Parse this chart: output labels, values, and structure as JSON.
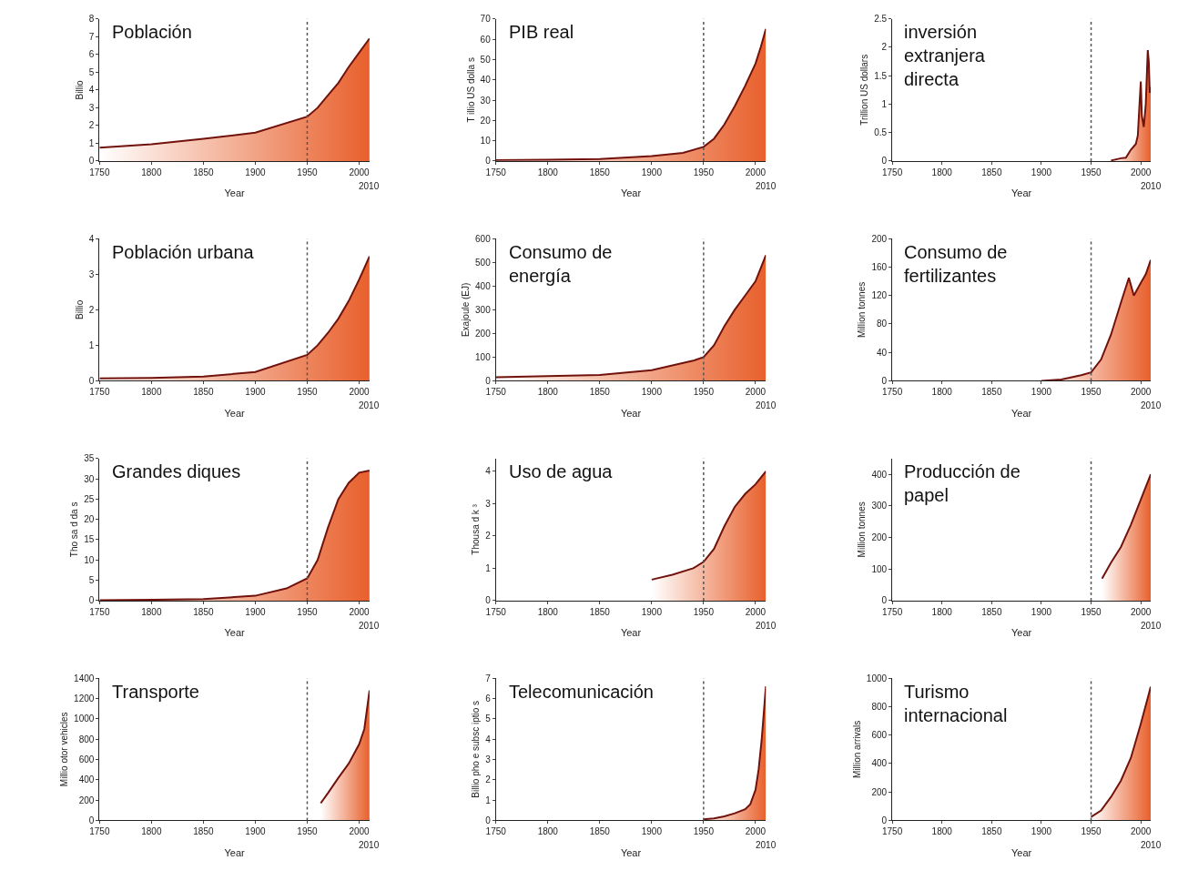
{
  "chart_data": [
    {
      "type": "area",
      "title": "Población",
      "xlabel": "Year",
      "ylabel": "Billio",
      "annotations": [
        "2010"
      ],
      "xlim": [
        1750,
        2010
      ],
      "xticks": [
        1750,
        1800,
        1850,
        1900,
        1950,
        2000
      ],
      "ylim": [
        0,
        8
      ],
      "yticks": [
        0,
        1,
        2,
        3,
        4,
        5,
        6,
        7,
        8
      ],
      "ref_lines": [
        {
          "axis": "x",
          "value": 1950,
          "color": "#555555",
          "line_style": "dotted"
        }
      ],
      "series": [
        {
          "color": "#e8602c",
          "x": [
            1750,
            1800,
            1850,
            1900,
            1950,
            1960,
            1970,
            1980,
            1990,
            2000,
            2010
          ],
          "values": [
            0.75,
            0.95,
            1.25,
            1.6,
            2.5,
            3.0,
            3.7,
            4.4,
            5.3,
            6.1,
            6.9
          ]
        }
      ]
    },
    {
      "type": "area",
      "title": "PIB real",
      "xlabel": "Year",
      "ylabel": "T illio US dolla s",
      "annotations": [
        "2010"
      ],
      "xlim": [
        1750,
        2010
      ],
      "xticks": [
        1750,
        1800,
        1850,
        1900,
        1950,
        2000
      ],
      "ylim": [
        0,
        70
      ],
      "yticks": [
        0,
        10,
        20,
        30,
        40,
        50,
        60,
        70
      ],
      "ref_lines": [
        {
          "axis": "x",
          "value": 1950,
          "color": "#555555",
          "line_style": "dotted"
        }
      ],
      "series": [
        {
          "color": "#e8602c",
          "x": [
            1750,
            1800,
            1850,
            1900,
            1930,
            1950,
            1960,
            1970,
            1980,
            1990,
            2000,
            2005,
            2010
          ],
          "values": [
            0.5,
            0.7,
            1,
            2.5,
            4,
            7,
            11,
            18,
            27,
            37,
            48,
            56,
            65
          ]
        }
      ]
    },
    {
      "type": "area",
      "title": "inversión extranjera directa",
      "xlabel": "Year",
      "ylabel": "Trillion US dollars",
      "annotations": [
        "2010"
      ],
      "xlim": [
        1750,
        2010
      ],
      "xticks": [
        1750,
        1800,
        1850,
        1900,
        1950,
        2000
      ],
      "ylim": [
        0,
        2.5
      ],
      "yticks": [
        0,
        0.5,
        1,
        1.5,
        2,
        2.5
      ],
      "ref_lines": [
        {
          "axis": "x",
          "value": 1950,
          "color": "#555555",
          "line_style": "dotted"
        }
      ],
      "series": [
        {
          "color": "#e8602c",
          "x": [
            1970,
            1980,
            1985,
            1990,
            1995,
            1997,
            1999,
            2000,
            2001,
            2003,
            2005,
            2007,
            2008,
            2009,
            2010
          ],
          "values": [
            0.01,
            0.05,
            0.06,
            0.2,
            0.3,
            0.45,
            1.1,
            1.4,
            0.8,
            0.6,
            1.0,
            1.95,
            1.75,
            1.2,
            1.3
          ]
        }
      ]
    },
    {
      "type": "area",
      "title": "Población urbana",
      "xlabel": "Year",
      "ylabel": "Billio",
      "annotations": [
        "2010"
      ],
      "xlim": [
        1750,
        2010
      ],
      "xticks": [
        1750,
        1800,
        1850,
        1900,
        1950,
        2000
      ],
      "ylim": [
        0,
        4
      ],
      "yticks": [
        0,
        1,
        2,
        3,
        4
      ],
      "ref_lines": [
        {
          "axis": "x",
          "value": 1950,
          "color": "#555555",
          "line_style": "dotted"
        }
      ],
      "series": [
        {
          "color": "#e8602c",
          "x": [
            1750,
            1800,
            1850,
            1900,
            1950,
            1960,
            1970,
            1980,
            1990,
            2000,
            2010
          ],
          "values": [
            0.07,
            0.08,
            0.12,
            0.25,
            0.73,
            1.0,
            1.35,
            1.75,
            2.25,
            2.85,
            3.5
          ]
        }
      ]
    },
    {
      "type": "area",
      "title": "Consumo de energía",
      "xlabel": "Year",
      "ylabel": "Exajoule (EJ)",
      "annotations": [
        "2010"
      ],
      "xlim": [
        1750,
        2010
      ],
      "xticks": [
        1750,
        1800,
        1850,
        1900,
        1950,
        2000
      ],
      "ylim": [
        0,
        600
      ],
      "yticks": [
        0,
        100,
        200,
        300,
        400,
        500,
        600
      ],
      "ref_lines": [
        {
          "axis": "x",
          "value": 1950,
          "color": "#555555",
          "line_style": "dotted"
        }
      ],
      "series": [
        {
          "color": "#e8602c",
          "x": [
            1750,
            1800,
            1850,
            1900,
            1920,
            1940,
            1950,
            1960,
            1970,
            1980,
            1990,
            2000,
            2010
          ],
          "values": [
            15,
            20,
            25,
            45,
            65,
            85,
            100,
            150,
            230,
            300,
            360,
            420,
            530
          ]
        }
      ]
    },
    {
      "type": "area",
      "title": "Consumo de fertilizantes",
      "xlabel": "Year",
      "ylabel": "Million tonnes",
      "annotations": [
        "2010"
      ],
      "xlim": [
        1750,
        2010
      ],
      "xticks": [
        1750,
        1800,
        1850,
        1900,
        1950,
        2000
      ],
      "ylim": [
        0,
        200
      ],
      "yticks": [
        0,
        40,
        80,
        120,
        160,
        200
      ],
      "ref_lines": [
        {
          "axis": "x",
          "value": 1950,
          "color": "#555555",
          "line_style": "dotted"
        }
      ],
      "series": [
        {
          "color": "#e8602c",
          "x": [
            1900,
            1920,
            1940,
            1950,
            1960,
            1970,
            1980,
            1988,
            1993,
            2000,
            2005,
            2010
          ],
          "values": [
            0,
            2,
            8,
            12,
            30,
            65,
            110,
            145,
            120,
            138,
            150,
            170
          ]
        }
      ]
    },
    {
      "type": "area",
      "title": "Grandes diques",
      "xlabel": "Year",
      "ylabel": "Tho sa d da s",
      "annotations": [
        "2010"
      ],
      "xlim": [
        1750,
        2010
      ],
      "xticks": [
        1750,
        1800,
        1850,
        1900,
        1950,
        2000
      ],
      "ylim": [
        0,
        35
      ],
      "yticks": [
        0,
        5,
        10,
        15,
        20,
        25,
        30,
        35
      ],
      "ref_lines": [
        {
          "axis": "x",
          "value": 1950,
          "color": "#555555",
          "line_style": "dotted"
        }
      ],
      "series": [
        {
          "color": "#e8602c",
          "x": [
            1750,
            1800,
            1850,
            1900,
            1930,
            1950,
            1960,
            1970,
            1980,
            1990,
            2000,
            2010
          ],
          "values": [
            0.1,
            0.2,
            0.4,
            1.2,
            3,
            5.5,
            10,
            18,
            25,
            29,
            31.5,
            32
          ]
        }
      ]
    },
    {
      "type": "area",
      "title": "Uso de agua",
      "xlabel": "Year",
      "ylabel": "Thousa d k ³",
      "annotations": [
        "2010"
      ],
      "xlim": [
        1750,
        2010
      ],
      "xticks": [
        1750,
        1800,
        1850,
        1900,
        1950,
        2000
      ],
      "ylim": [
        0,
        4.4
      ],
      "yticks": [
        0,
        1,
        2,
        3,
        4
      ],
      "ref_lines": [
        {
          "axis": "x",
          "value": 1950,
          "color": "#555555",
          "line_style": "dotted"
        }
      ],
      "series": [
        {
          "color": "#e8602c",
          "x": [
            1900,
            1920,
            1940,
            1950,
            1960,
            1970,
            1980,
            1990,
            2000,
            2010
          ],
          "values": [
            0.65,
            0.8,
            1.0,
            1.2,
            1.6,
            2.3,
            2.9,
            3.3,
            3.6,
            4.0
          ]
        }
      ]
    },
    {
      "type": "area",
      "title": "Producción de papel",
      "xlabel": "Year",
      "ylabel": "Million tonnes",
      "annotations": [
        "2010"
      ],
      "xlim": [
        1750,
        2010
      ],
      "xticks": [
        1750,
        1800,
        1850,
        1900,
        1950,
        2000
      ],
      "ylim": [
        0,
        450
      ],
      "yticks": [
        0,
        100,
        200,
        300,
        400
      ],
      "ref_lines": [
        {
          "axis": "x",
          "value": 1950,
          "color": "#555555",
          "line_style": "dotted"
        }
      ],
      "series": [
        {
          "color": "#e8602c",
          "x": [
            1961,
            1970,
            1980,
            1990,
            2000,
            2010
          ],
          "values": [
            70,
            120,
            170,
            240,
            320,
            400
          ]
        }
      ]
    },
    {
      "type": "area",
      "title": "Transporte",
      "xlabel": "Year",
      "ylabel": "Millio otor vehicles",
      "annotations": [
        "2010"
      ],
      "xlim": [
        1750,
        2010
      ],
      "xticks": [
        1750,
        1800,
        1850,
        1900,
        1950,
        2000
      ],
      "ylim": [
        0,
        1400
      ],
      "yticks": [
        0,
        200,
        400,
        600,
        800,
        1000,
        1200,
        1400
      ],
      "ref_lines": [
        {
          "axis": "x",
          "value": 1950,
          "color": "#555555",
          "line_style": "dotted"
        }
      ],
      "series": [
        {
          "color": "#e8602c",
          "x": [
            1963,
            1970,
            1980,
            1990,
            2000,
            2005,
            2010
          ],
          "values": [
            170,
            270,
            420,
            560,
            750,
            900,
            1280
          ]
        }
      ]
    },
    {
      "type": "area",
      "title": "Telecomunicación",
      "xlabel": "Year",
      "ylabel": "Billio pho e subsc iptio s",
      "annotations": [
        "2010"
      ],
      "xlim": [
        1750,
        2010
      ],
      "xticks": [
        1750,
        1800,
        1850,
        1900,
        1950,
        2000
      ],
      "ylim": [
        0,
        7
      ],
      "yticks": [
        0,
        1,
        2,
        3,
        4,
        5,
        6,
        7
      ],
      "ref_lines": [
        {
          "axis": "x",
          "value": 1950,
          "color": "#555555",
          "line_style": "dotted"
        }
      ],
      "series": [
        {
          "color": "#e8602c",
          "x": [
            1950,
            1960,
            1970,
            1980,
            1990,
            1995,
            2000,
            2003,
            2006,
            2010
          ],
          "values": [
            0.05,
            0.1,
            0.2,
            0.35,
            0.55,
            0.8,
            1.5,
            2.5,
            4,
            6.6
          ]
        }
      ]
    },
    {
      "type": "area",
      "title": "Turismo internacional",
      "xlabel": "Year",
      "ylabel": "Million arrivals",
      "annotations": [
        "2010"
      ],
      "xlim": [
        1750,
        2010
      ],
      "xticks": [
        1750,
        1800,
        1850,
        1900,
        1950,
        2000
      ],
      "ylim": [
        0,
        1000
      ],
      "yticks": [
        0,
        200,
        400,
        600,
        800,
        1000
      ],
      "ref_lines": [
        {
          "axis": "x",
          "value": 1950,
          "color": "#555555",
          "line_style": "dotted"
        }
      ],
      "series": [
        {
          "color": "#e8602c",
          "x": [
            1950,
            1960,
            1970,
            1980,
            1990,
            2000,
            2010
          ],
          "values": [
            25,
            70,
            165,
            280,
            440,
            680,
            940
          ]
        }
      ]
    }
  ]
}
